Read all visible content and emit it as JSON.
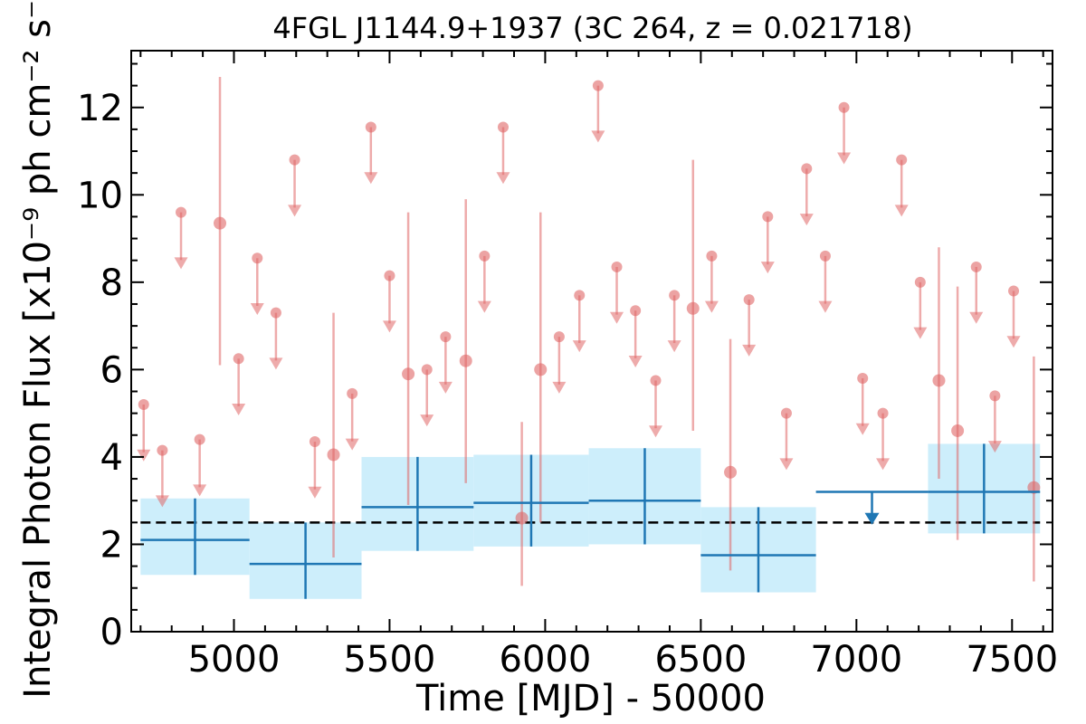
{
  "chart_data": {
    "type": "scatter",
    "title": "4FGL J1144.9+1937 (3C 264, z = 0.021718)",
    "xlabel": "Time [MJD] - 50000",
    "ylabel": "Integral Photon Flux [x10⁻⁹ ph cm⁻² s⁻¹]",
    "xlim": [
      4670,
      7630
    ],
    "ylim": [
      0,
      13.3
    ],
    "x_ticks": [
      5000,
      5500,
      6000,
      6500,
      7000,
      7500
    ],
    "y_ticks": [
      0,
      2,
      4,
      6,
      8,
      10,
      12
    ],
    "grid": false,
    "reference_level": 2.5,
    "colors": {
      "short_bins": "#e06666",
      "long_bins": "#1f77b4",
      "long_bins_band": "#cdeefb",
      "reference": "#000000"
    },
    "series": [
      {
        "kind": "detections",
        "points": [
          {
            "x": 4955,
            "y": 9.35,
            "low": 6.1,
            "high": 12.7
          },
          {
            "x": 5320,
            "y": 4.05,
            "low": 1.7,
            "high": 7.3
          },
          {
            "x": 5560,
            "y": 5.9,
            "low": 2.9,
            "high": 9.6
          },
          {
            "x": 5745,
            "y": 6.2,
            "low": 3.4,
            "high": 9.9
          },
          {
            "x": 5925,
            "y": 2.6,
            "low": 1.05,
            "high": 4.8
          },
          {
            "x": 5985,
            "y": 6.0,
            "low": 2.5,
            "high": 9.6
          },
          {
            "x": 6475,
            "y": 7.4,
            "low": 4.6,
            "high": 10.8
          },
          {
            "x": 6595,
            "y": 3.65,
            "low": 1.4,
            "high": 6.7
          },
          {
            "x": 7265,
            "y": 5.75,
            "low": 3.5,
            "high": 8.8
          },
          {
            "x": 7325,
            "y": 4.6,
            "low": 2.1,
            "high": 7.9
          },
          {
            "x": 7570,
            "y": 3.3,
            "low": 1.15,
            "high": 6.3
          }
        ]
      },
      {
        "kind": "upper_limits",
        "points": [
          {
            "x": 4710,
            "y": 5.2
          },
          {
            "x": 4770,
            "y": 4.15
          },
          {
            "x": 4830,
            "y": 9.6
          },
          {
            "x": 4890,
            "y": 4.4
          },
          {
            "x": 5015,
            "y": 6.25
          },
          {
            "x": 5075,
            "y": 8.55
          },
          {
            "x": 5135,
            "y": 7.3
          },
          {
            "x": 5195,
            "y": 10.8
          },
          {
            "x": 5260,
            "y": 4.35
          },
          {
            "x": 5380,
            "y": 5.45
          },
          {
            "x": 5440,
            "y": 11.55
          },
          {
            "x": 5500,
            "y": 8.15
          },
          {
            "x": 5620,
            "y": 6.0
          },
          {
            "x": 5680,
            "y": 6.75
          },
          {
            "x": 5805,
            "y": 8.6
          },
          {
            "x": 5865,
            "y": 11.55
          },
          {
            "x": 6045,
            "y": 6.75
          },
          {
            "x": 6110,
            "y": 7.7
          },
          {
            "x": 6170,
            "y": 12.5
          },
          {
            "x": 6230,
            "y": 8.35
          },
          {
            "x": 6290,
            "y": 7.35
          },
          {
            "x": 6355,
            "y": 5.75
          },
          {
            "x": 6415,
            "y": 7.7
          },
          {
            "x": 6535,
            "y": 8.6
          },
          {
            "x": 6655,
            "y": 7.6
          },
          {
            "x": 6715,
            "y": 9.5
          },
          {
            "x": 6775,
            "y": 5.0
          },
          {
            "x": 6840,
            "y": 10.6
          },
          {
            "x": 6900,
            "y": 8.6
          },
          {
            "x": 6960,
            "y": 12.0
          },
          {
            "x": 7020,
            "y": 5.8
          },
          {
            "x": 7085,
            "y": 5.0
          },
          {
            "x": 7145,
            "y": 10.8
          },
          {
            "x": 7205,
            "y": 8.0
          },
          {
            "x": 7385,
            "y": 8.35
          },
          {
            "x": 7445,
            "y": 5.4
          },
          {
            "x": 7505,
            "y": 7.8
          }
        ],
        "arrow_length": 1.3
      },
      {
        "kind": "long_bins",
        "bins": [
          {
            "x_start": 4700,
            "x_end": 5050,
            "y": 2.1,
            "low": 1.3,
            "high": 3.05
          },
          {
            "x_start": 5050,
            "x_end": 5410,
            "y": 1.55,
            "low": 0.75,
            "high": 2.5
          },
          {
            "x_start": 5410,
            "x_end": 5770,
            "y": 2.85,
            "low": 1.85,
            "high": 4.0
          },
          {
            "x_start": 5770,
            "x_end": 6140,
            "y": 2.95,
            "low": 1.95,
            "high": 4.05
          },
          {
            "x_start": 6140,
            "x_end": 6500,
            "y": 3.0,
            "low": 2.0,
            "high": 4.2
          },
          {
            "x_start": 6500,
            "x_end": 6870,
            "y": 1.75,
            "low": 0.9,
            "high": 2.85
          },
          {
            "x_start": 6870,
            "x_end": 7230,
            "y": 3.2,
            "upper_limit": true
          },
          {
            "x_start": 7230,
            "x_end": 7590,
            "y": 3.2,
            "low": 2.25,
            "high": 4.3
          }
        ]
      }
    ]
  }
}
